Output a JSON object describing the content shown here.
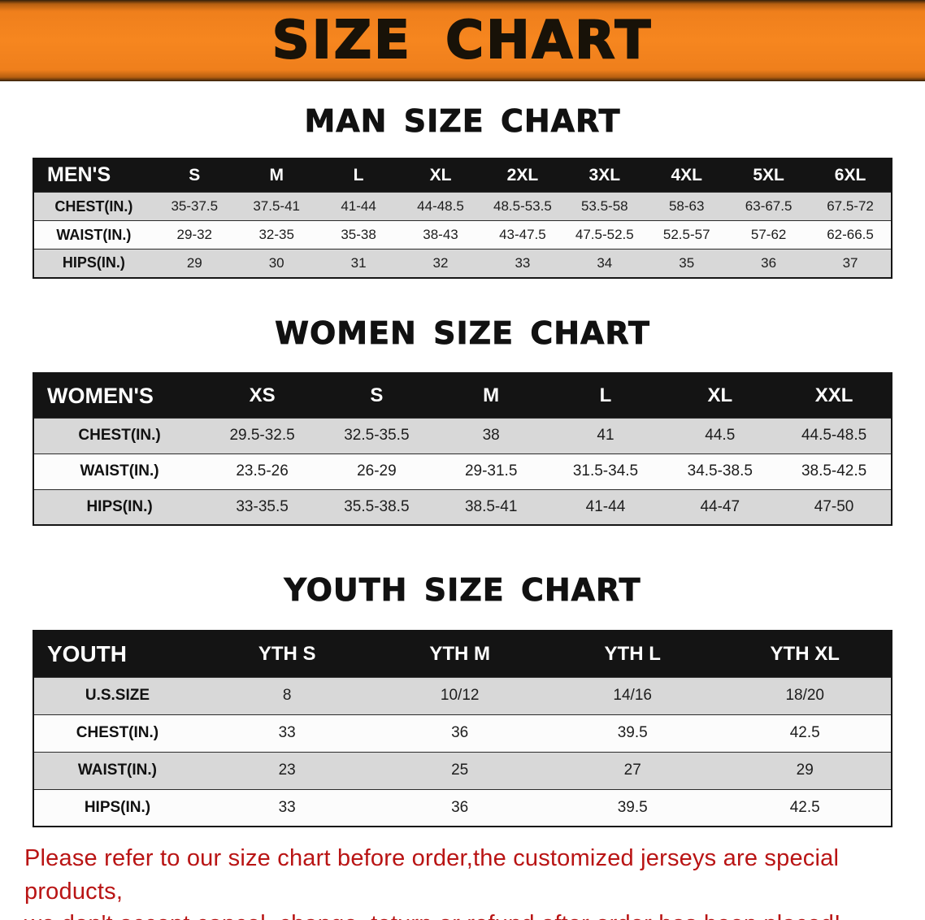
{
  "banner": {
    "title": "SIZE CHART",
    "bg_color": "#f5831f",
    "text_color": "#181208"
  },
  "sections": [
    {
      "id": "men",
      "title": "MAN SIZE CHART",
      "table": {
        "label": "MEN'S",
        "columns": [
          "S",
          "M",
          "L",
          "XL",
          "2XL",
          "3XL",
          "4XL",
          "5XL",
          "6XL"
        ],
        "rows": [
          {
            "label": "CHEST(IN.)",
            "values": [
              "35-37.5",
              "37.5-41",
              "41-44",
              "44-48.5",
              "48.5-53.5",
              "53.5-58",
              "58-63",
              "63-67.5",
              "67.5-72"
            ]
          },
          {
            "label": "WAIST(IN.)",
            "values": [
              "29-32",
              "32-35",
              "35-38",
              "38-43",
              "43-47.5",
              "47.5-52.5",
              "52.5-57",
              "57-62",
              "62-66.5"
            ]
          },
          {
            "label": "HIPS(IN.)",
            "values": [
              "29",
              "30",
              "31",
              "32",
              "33",
              "34",
              "35",
              "36",
              "37"
            ]
          }
        ]
      }
    },
    {
      "id": "women",
      "title": "WOMEN SIZE CHART",
      "table": {
        "label": "WOMEN'S",
        "columns": [
          "XS",
          "S",
          "M",
          "L",
          "XL",
          "XXL"
        ],
        "rows": [
          {
            "label": "CHEST(IN.)",
            "values": [
              "29.5-32.5",
              "32.5-35.5",
              "38",
              "41",
              "44.5",
              "44.5-48.5"
            ]
          },
          {
            "label": "WAIST(IN.)",
            "values": [
              "23.5-26",
              "26-29",
              "29-31.5",
              "31.5-34.5",
              "34.5-38.5",
              "38.5-42.5"
            ]
          },
          {
            "label": "HIPS(IN.)",
            "values": [
              "33-35.5",
              "35.5-38.5",
              "38.5-41",
              "41-44",
              "44-47",
              "47-50"
            ]
          }
        ]
      }
    },
    {
      "id": "youth",
      "title": "YOUTH SIZE CHART",
      "table": {
        "label": "YOUTH",
        "columns": [
          "YTH S",
          "YTH M",
          "YTH L",
          "YTH XL"
        ],
        "rows": [
          {
            "label": "U.S.SIZE",
            "values": [
              "8",
              "10/12",
              "14/16",
              "18/20"
            ]
          },
          {
            "label": "CHEST(IN.)",
            "values": [
              "33",
              "36",
              "39.5",
              "42.5"
            ]
          },
          {
            "label": "WAIST(IN.)",
            "values": [
              "23",
              "25",
              "27",
              "29"
            ]
          },
          {
            "label": "HIPS(IN.)",
            "values": [
              "33",
              "36",
              "39.5",
              "42.5"
            ]
          }
        ]
      }
    }
  ],
  "footer": {
    "line1": "Please refer to our size chart before order,the customized jerseys are special products,",
    "line2": "we don't accept cancel, change, teturn or refund after order has been placed!",
    "text_color": "#b91414"
  },
  "chart_data": [
    {
      "type": "table",
      "title": "MAN SIZE CHART",
      "columns": [
        "MEN'S",
        "S",
        "M",
        "L",
        "XL",
        "2XL",
        "3XL",
        "4XL",
        "5XL",
        "6XL"
      ],
      "rows": [
        [
          "CHEST(IN.)",
          "35-37.5",
          "37.5-41",
          "41-44",
          "44-48.5",
          "48.5-53.5",
          "53.5-58",
          "58-63",
          "63-67.5",
          "67.5-72"
        ],
        [
          "WAIST(IN.)",
          "29-32",
          "32-35",
          "35-38",
          "38-43",
          "43-47.5",
          "47.5-52.5",
          "52.5-57",
          "57-62",
          "62-66.5"
        ],
        [
          "HIPS(IN.)",
          "29",
          "30",
          "31",
          "32",
          "33",
          "34",
          "35",
          "36",
          "37"
        ]
      ]
    },
    {
      "type": "table",
      "title": "WOMEN SIZE CHART",
      "columns": [
        "WOMEN'S",
        "XS",
        "S",
        "M",
        "L",
        "XL",
        "XXL"
      ],
      "rows": [
        [
          "CHEST(IN.)",
          "29.5-32.5",
          "32.5-35.5",
          "38",
          "41",
          "44.5",
          "44.5-48.5"
        ],
        [
          "WAIST(IN.)",
          "23.5-26",
          "26-29",
          "29-31.5",
          "31.5-34.5",
          "34.5-38.5",
          "38.5-42.5"
        ],
        [
          "HIPS(IN.)",
          "33-35.5",
          "35.5-38.5",
          "38.5-41",
          "41-44",
          "44-47",
          "47-50"
        ]
      ]
    },
    {
      "type": "table",
      "title": "YOUTH SIZE CHART",
      "columns": [
        "YOUTH",
        "YTH S",
        "YTH M",
        "YTH L",
        "YTH XL"
      ],
      "rows": [
        [
          "U.S.SIZE",
          "8",
          "10/12",
          "14/16",
          "18/20"
        ],
        [
          "CHEST(IN.)",
          "33",
          "36",
          "39.5",
          "42.5"
        ],
        [
          "WAIST(IN.)",
          "23",
          "25",
          "27",
          "29"
        ],
        [
          "HIPS(IN.)",
          "33",
          "36",
          "39.5",
          "42.5"
        ]
      ]
    }
  ]
}
